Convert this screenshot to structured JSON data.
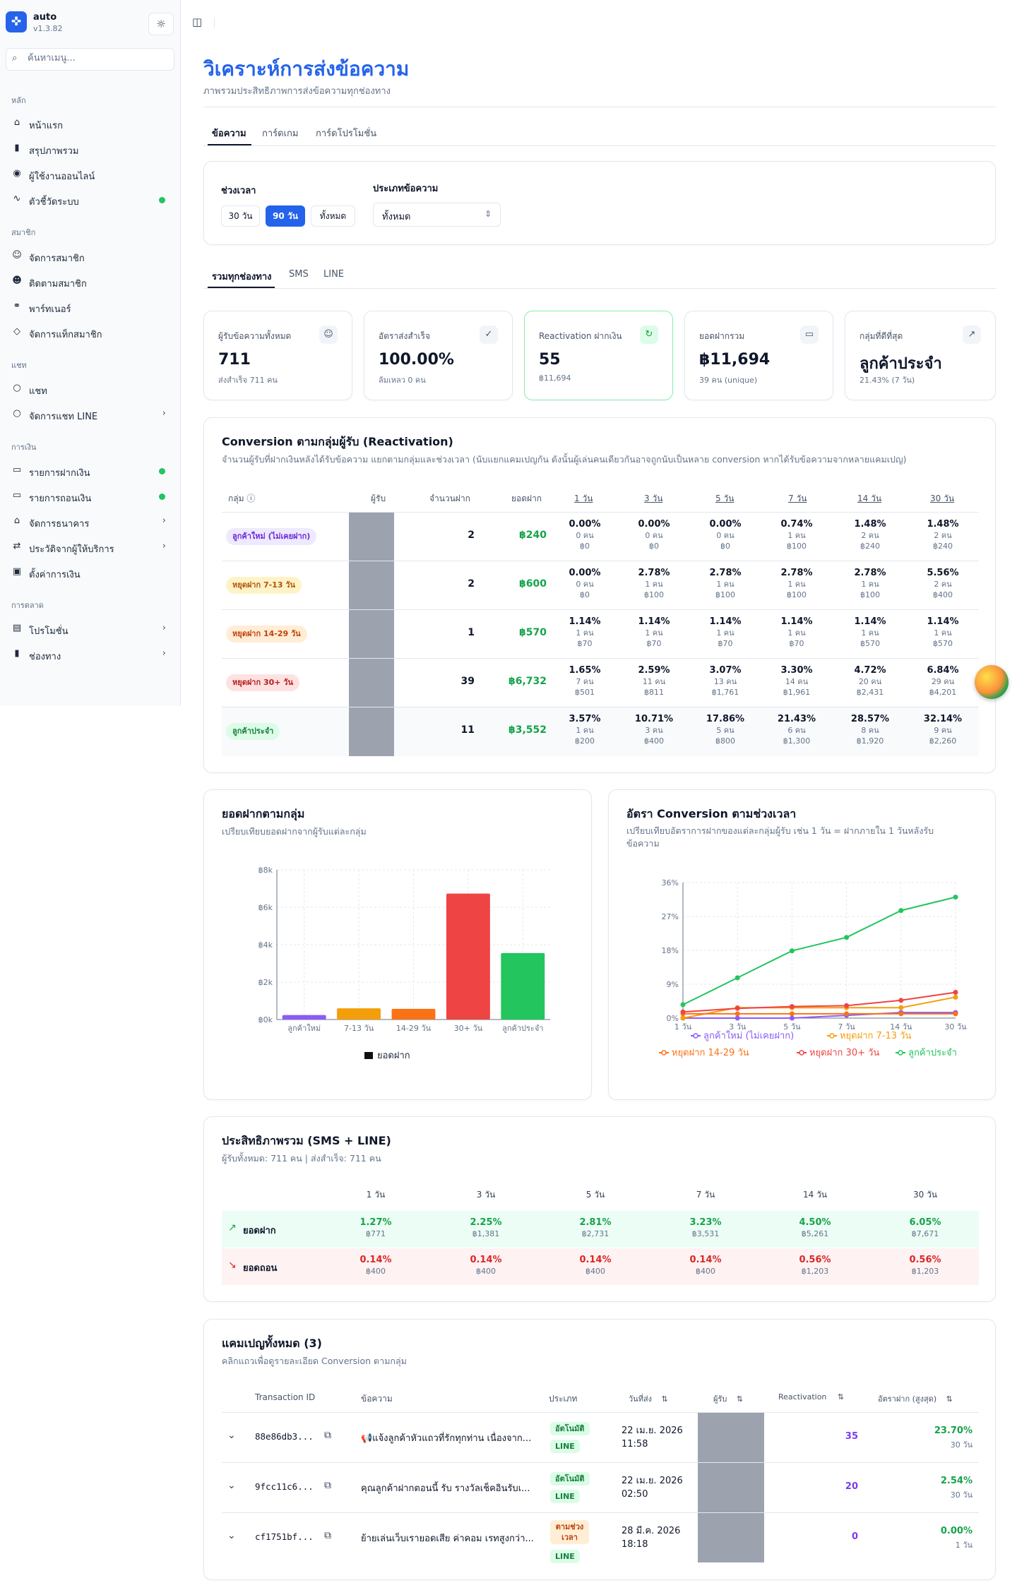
{
  "app": {
    "name": "auto",
    "version": "v1.3.82"
  },
  "search": {
    "placeholder": "ค้นหาเมนู..."
  },
  "sidebar": {
    "sections": [
      {
        "title": "หลัก",
        "items": [
          {
            "label": "หน้าแรก",
            "icon": "home-icon"
          },
          {
            "label": "สรุปภาพรวม",
            "icon": "bar-chart-icon"
          },
          {
            "label": "ผู้ใช้งานออนไลน์",
            "icon": "radio-icon"
          },
          {
            "label": "ตัวชี้วัดระบบ",
            "icon": "activity-icon",
            "dot": true
          }
        ]
      },
      {
        "title": "สมาชิก",
        "items": [
          {
            "label": "จัดการสมาชิก",
            "icon": "users-icon"
          },
          {
            "label": "ติดตามสมาชิก",
            "icon": "user-search-icon"
          },
          {
            "label": "พาร์ทเนอร์",
            "icon": "handshake-icon"
          },
          {
            "label": "จัดการแท็กสมาชิก",
            "icon": "tag-icon"
          }
        ]
      },
      {
        "title": "แชท",
        "items": [
          {
            "label": "แชท",
            "icon": "chat-icon"
          },
          {
            "label": "จัดการแชท LINE",
            "icon": "chat-icon",
            "chevron": true
          }
        ]
      },
      {
        "title": "การเงิน",
        "items": [
          {
            "label": "รายการฝากเงิน",
            "icon": "money-icon",
            "dot": true
          },
          {
            "label": "รายการถอนเงิน",
            "icon": "money-icon",
            "dot": true
          },
          {
            "label": "จัดการธนาคาร",
            "icon": "bank-icon",
            "chevron": true
          },
          {
            "label": "ประวัติจากผู้ให้บริการ",
            "icon": "exchange-icon",
            "chevron": true
          },
          {
            "label": "ตั้งค่าการเงิน",
            "icon": "wallet-icon"
          }
        ]
      },
      {
        "title": "การตลาด",
        "items": [
          {
            "label": "โปรโมชั่น",
            "icon": "gift-icon",
            "chevron": true
          },
          {
            "label": "ช่องทาง",
            "icon": "bar-chart-icon",
            "chevron": true
          }
        ]
      }
    ]
  },
  "page": {
    "title": "วิเคราะห์การส่งข้อความ",
    "subtitle": "ภาพรวมประสิทธิภาพการส่งข้อความทุกช่องทาง"
  },
  "tabs": [
    "ข้อความ",
    "การ์ดเกม",
    "การ์ดโปรโมชั่น"
  ],
  "filters": {
    "period_label": "ช่วงเวลา",
    "period_options": [
      "30 วัน",
      "90 วัน",
      "ทั้งหมด"
    ],
    "period_selected": "90 วัน",
    "type_label": "ประเภทข้อความ",
    "type_value": "ทั้งหมด"
  },
  "channel_tabs": [
    "รวมทุกช่องทาง",
    "SMS",
    "LINE"
  ],
  "kpis": [
    {
      "label": "ผู้รับข้อความทั้งหมด",
      "value": "711",
      "sub": "ส่งสำเร็จ 711 คน",
      "icon": "users-icon"
    },
    {
      "label": "อัตราส่งสำเร็จ",
      "value": "100.00%",
      "sub": "ล้มเหลว 0 คน",
      "icon": "check-circle-icon"
    },
    {
      "label": "Reactivation ฝากเงิน",
      "value": "55",
      "sub": "฿11,694",
      "icon": "refresh-icon"
    },
    {
      "label": "ยอดฝากรวม",
      "value": "฿11,694",
      "sub": "39 คน (unique)",
      "icon": "cash-icon"
    },
    {
      "label": "กลุ่มที่ดีที่สุด",
      "value": "ลูกค้าประจำ",
      "sub": "21.43% (7 วัน)",
      "icon": "trend-up-icon"
    }
  ],
  "conversion": {
    "title": "Conversion ตามกลุ่มผู้รับ (Reactivation)",
    "subtitle": "จำนวนผู้รับที่ฝากเงินหลังได้รับข้อความ แยกตามกลุ่มและช่วงเวลา (นับแยกแคมเปญกัน ดังนั้นผู้เล่นคนเดียวกันอาจถูกนับเป็นหลาย conversion หากได้รับข้อความจากหลายแคมเปญ)",
    "headers": [
      "กลุ่ม",
      "ผู้รับ",
      "จำนวนฝาก",
      "ยอดฝาก",
      "1 วัน",
      "3 วัน",
      "5 วัน",
      "7 วัน",
      "14 วัน",
      "30 วัน"
    ],
    "rows": [
      {
        "group": "ลูกค้าใหม่ (ไม่เคยฝาก)",
        "deposits": "2",
        "amount": "฿240",
        "cells": [
          [
            "0.00%",
            "0 คน",
            "฿0"
          ],
          [
            "0.00%",
            "0 คน",
            "฿0"
          ],
          [
            "0.00%",
            "0 คน",
            "฿0"
          ],
          [
            "0.74%",
            "1 คน",
            "฿100"
          ],
          [
            "1.48%",
            "2 คน",
            "฿240"
          ],
          [
            "1.48%",
            "2 คน",
            "฿240"
          ]
        ]
      },
      {
        "group": "หยุดฝาก 7-13 วัน",
        "deposits": "2",
        "amount": "฿600",
        "cells": [
          [
            "0.00%",
            "0 คน",
            "฿0"
          ],
          [
            "2.78%",
            "1 คน",
            "฿100"
          ],
          [
            "2.78%",
            "1 คน",
            "฿100"
          ],
          [
            "2.78%",
            "1 คน",
            "฿100"
          ],
          [
            "2.78%",
            "1 คน",
            "฿100"
          ],
          [
            "5.56%",
            "2 คน",
            "฿400"
          ]
        ]
      },
      {
        "group": "หยุดฝาก 14-29 วัน",
        "deposits": "1",
        "amount": "฿570",
        "cells": [
          [
            "1.14%",
            "1 คน",
            "฿70"
          ],
          [
            "1.14%",
            "1 คน",
            "฿70"
          ],
          [
            "1.14%",
            "1 คน",
            "฿70"
          ],
          [
            "1.14%",
            "1 คน",
            "฿70"
          ],
          [
            "1.14%",
            "1 คน",
            "฿570"
          ],
          [
            "1.14%",
            "1 คน",
            "฿570"
          ]
        ]
      },
      {
        "group": "หยุดฝาก 30+ วัน",
        "deposits": "39",
        "amount": "฿6,732",
        "cells": [
          [
            "1.65%",
            "7 คน",
            "฿501"
          ],
          [
            "2.59%",
            "11 คน",
            "฿811"
          ],
          [
            "3.07%",
            "13 คน",
            "฿1,761"
          ],
          [
            "3.30%",
            "14 คน",
            "฿1,961"
          ],
          [
            "4.72%",
            "20 คน",
            "฿2,431"
          ],
          [
            "6.84%",
            "29 คน",
            "฿4,201"
          ]
        ]
      },
      {
        "group": "ลูกค้าประจำ",
        "deposits": "11",
        "amount": "฿3,552",
        "cells": [
          [
            "3.57%",
            "1 คน",
            "฿200"
          ],
          [
            "10.71%",
            "3 คน",
            "฿400"
          ],
          [
            "17.86%",
            "5 คน",
            "฿800"
          ],
          [
            "21.43%",
            "6 คน",
            "฿1,300"
          ],
          [
            "28.57%",
            "8 คน",
            "฿1,920"
          ],
          [
            "32.14%",
            "9 คน",
            "฿2,260"
          ]
        ]
      }
    ]
  },
  "bar_card": {
    "title": "ยอดฝากตามกลุ่ม",
    "subtitle": "เปรียบเทียบยอดฝากจากผู้รับแต่ละกลุ่ม"
  },
  "line_card": {
    "title": "อัตรา Conversion ตามช่วงเวลา",
    "subtitle": "เปรียบเทียบอัตราการฝากของแต่ละกลุ่มผู้รับ เช่น 1 วัน = ฝากภายใน 1 วันหลังรับข้อความ"
  },
  "chart_data": [
    {
      "type": "bar",
      "categories": [
        "ลูกค้าใหม่",
        "7-13 วัน",
        "14-29 วัน",
        "30+ วัน",
        "ลูกค้าประจำ"
      ],
      "series": [
        {
          "name": "ยอดฝาก",
          "values": [
            240,
            600,
            570,
            6732,
            3552
          ]
        }
      ],
      "colors": [
        "#8b5cf6",
        "#f59e0b",
        "#f97316",
        "#ef4444",
        "#22c55e"
      ],
      "ylim": [
        0,
        8000
      ],
      "yticks": [
        "฿0k",
        "฿2k",
        "฿4k",
        "฿6k",
        "฿8k"
      ],
      "grid": true,
      "legend": "bottom"
    },
    {
      "type": "line",
      "categories": [
        "1 วัน",
        "3 วัน",
        "5 วัน",
        "7 วัน",
        "14 วัน",
        "30 วัน"
      ],
      "ylim": [
        0,
        36
      ],
      "yticks": [
        "0%",
        "9%",
        "18%",
        "27%",
        "36%"
      ],
      "grid": true,
      "legend": "bottom",
      "series": [
        {
          "name": "ลูกค้าใหม่ (ไม่เคยฝาก)",
          "color": "#8b5cf6",
          "values": [
            0,
            0,
            0,
            0.74,
            1.48,
            1.48
          ]
        },
        {
          "name": "หยุดฝาก 7-13 วัน",
          "color": "#f59e0b",
          "values": [
            0,
            2.78,
            2.78,
            2.78,
            2.78,
            5.56
          ]
        },
        {
          "name": "หยุดฝาก 14-29 วัน",
          "color": "#f97316",
          "values": [
            1.14,
            1.14,
            1.14,
            1.14,
            1.14,
            1.14
          ]
        },
        {
          "name": "หยุดฝาก 30+ วัน",
          "color": "#ef4444",
          "values": [
            1.65,
            2.59,
            3.07,
            3.3,
            4.72,
            6.84
          ]
        },
        {
          "name": "ลูกค้าประจำ",
          "color": "#22c55e",
          "values": [
            3.57,
            10.71,
            17.86,
            21.43,
            28.57,
            32.14
          ]
        }
      ]
    }
  ],
  "efficiency": {
    "title": "ประสิทธิภาพรวม (SMS + LINE)",
    "subtitle": "ผู้รับทั้งหมด: 711 คน | ส่งสำเร็จ: 711 คน",
    "headers": [
      "1 วัน",
      "3 วัน",
      "5 วัน",
      "7 วัน",
      "14 วัน",
      "30 วัน"
    ],
    "rows": [
      {
        "label": "ยอดฝาก",
        "cells": [
          [
            "1.27%",
            "฿771"
          ],
          [
            "2.25%",
            "฿1,381"
          ],
          [
            "2.81%",
            "฿2,731"
          ],
          [
            "3.23%",
            "฿3,531"
          ],
          [
            "4.50%",
            "฿5,261"
          ],
          [
            "6.05%",
            "฿7,671"
          ]
        ]
      },
      {
        "label": "ยอดถอน",
        "cells": [
          [
            "0.14%",
            "฿400"
          ],
          [
            "0.14%",
            "฿400"
          ],
          [
            "0.14%",
            "฿400"
          ],
          [
            "0.14%",
            "฿400"
          ],
          [
            "0.56%",
            "฿1,203"
          ],
          [
            "0.56%",
            "฿1,203"
          ]
        ]
      }
    ]
  },
  "campaigns": {
    "title": "แคมเปญทั้งหมด (3)",
    "subtitle": "คลิกแถวเพื่อดูรายละเอียด Conversion ตามกลุ่ม",
    "headers": [
      "Transaction ID",
      "ข้อความ",
      "ประเภท",
      "วันที่ส่ง",
      "ผู้รับ",
      "Reactivation",
      "อัตราฝาก (สูงสุด)"
    ],
    "rows": [
      {
        "id": "88e86db3...",
        "message": "📢แจ้งลูกค้าหัวแถวที่รักทุกท่าน เนื่องจาก...",
        "type": "อัตโนมัติ",
        "channel": "LINE",
        "date": "22 เม.ย. 2026",
        "time": "11:58",
        "reactivation": "35",
        "rate": "23.70%",
        "rate_days": "30 วัน"
      },
      {
        "id": "9fcc11c6...",
        "message": "คุณลูกค้าฝากตอนนี้ รับ รางวัลเช็คอินรับเ...",
        "type": "อัตโนมัติ",
        "channel": "LINE",
        "date": "22 เม.ย. 2026",
        "time": "02:50",
        "reactivation": "20",
        "rate": "2.54%",
        "rate_days": "30 วัน"
      },
      {
        "id": "cf1751bf...",
        "message": "ย้ายเล่นเว็บเรายอดเสีย ค่าคอม เรทสูงกว่า...",
        "type": "ตามช่วงเวลา",
        "channel": "LINE",
        "date": "28 มี.ค. 2026",
        "time": "18:18",
        "reactivation": "0",
        "rate": "0.00%",
        "rate_days": "1 วัน"
      }
    ]
  }
}
